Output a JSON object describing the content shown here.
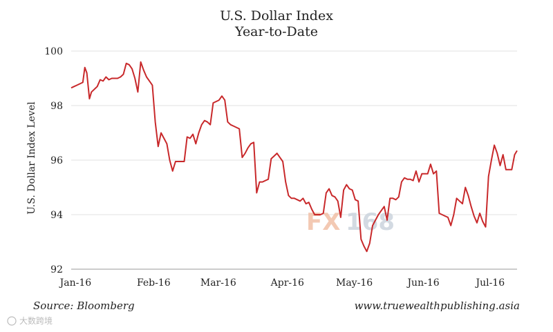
{
  "chart_data": {
    "type": "line",
    "title": "U.S. Dollar Index",
    "subtitle": "Year-to-Date",
    "xlabel": "",
    "ylabel": "U.S. Dollar Index Level",
    "ylim": [
      92,
      100
    ],
    "xlim": [
      0,
      200
    ],
    "yticks": [
      92,
      94,
      96,
      98,
      100
    ],
    "grid": true,
    "series_color": "#c8282a",
    "x_tick_labels": [
      {
        "label": "Jan-16",
        "x": 2
      },
      {
        "label": "Feb-16",
        "x": 37
      },
      {
        "label": "Mar-16",
        "x": 66
      },
      {
        "label": "Apr-16",
        "x": 97
      },
      {
        "label": "May-16",
        "x": 127
      },
      {
        "label": "Jun-16",
        "x": 158
      },
      {
        "label": "Jul-16",
        "x": 188
      }
    ],
    "series": [
      {
        "name": "U.S. Dollar Index",
        "points": [
          [
            0,
            98.65
          ],
          [
            1.3,
            98.7
          ],
          [
            2.6,
            98.75
          ],
          [
            3.9,
            98.8
          ],
          [
            5.2,
            98.85
          ],
          [
            6.1,
            99.4
          ],
          [
            7.0,
            99.2
          ],
          [
            8.2,
            98.25
          ],
          [
            9.1,
            98.5
          ],
          [
            10.4,
            98.6
          ],
          [
            11.7,
            98.7
          ],
          [
            13.0,
            98.95
          ],
          [
            14.3,
            98.9
          ],
          [
            15.6,
            99.05
          ],
          [
            16.9,
            98.95
          ],
          [
            18.2,
            99.0
          ],
          [
            19.5,
            99.0
          ],
          [
            20.8,
            99.0
          ],
          [
            22.1,
            99.05
          ],
          [
            23.4,
            99.15
          ],
          [
            24.7,
            99.55
          ],
          [
            26.0,
            99.5
          ],
          [
            27.3,
            99.35
          ],
          [
            28.6,
            99.0
          ],
          [
            29.9,
            98.5
          ],
          [
            31.2,
            99.6
          ],
          [
            32.5,
            99.3
          ],
          [
            33.8,
            99.05
          ],
          [
            35.1,
            98.9
          ],
          [
            36.4,
            98.75
          ],
          [
            37.7,
            97.4
          ],
          [
            39.0,
            96.5
          ],
          [
            40.3,
            97.0
          ],
          [
            41.6,
            96.8
          ],
          [
            42.9,
            96.6
          ],
          [
            44.2,
            96.0
          ],
          [
            45.5,
            95.6
          ],
          [
            46.8,
            95.95
          ],
          [
            48.1,
            95.95
          ],
          [
            49.4,
            95.95
          ],
          [
            50.7,
            95.95
          ],
          [
            52.0,
            96.85
          ],
          [
            53.3,
            96.8
          ],
          [
            54.6,
            96.95
          ],
          [
            55.9,
            96.6
          ],
          [
            57.2,
            97.0
          ],
          [
            58.5,
            97.3
          ],
          [
            59.8,
            97.45
          ],
          [
            61.1,
            97.4
          ],
          [
            62.4,
            97.3
          ],
          [
            63.7,
            98.1
          ],
          [
            65.0,
            98.15
          ],
          [
            66.3,
            98.2
          ],
          [
            67.6,
            98.35
          ],
          [
            68.9,
            98.2
          ],
          [
            70.2,
            97.4
          ],
          [
            71.5,
            97.3
          ],
          [
            72.8,
            97.25
          ],
          [
            74.1,
            97.2
          ],
          [
            75.4,
            97.15
          ],
          [
            76.7,
            96.1
          ],
          [
            78.0,
            96.25
          ],
          [
            79.3,
            96.45
          ],
          [
            80.6,
            96.6
          ],
          [
            81.9,
            96.65
          ],
          [
            83.2,
            94.8
          ],
          [
            84.5,
            95.2
          ],
          [
            85.8,
            95.2
          ],
          [
            87.1,
            95.25
          ],
          [
            88.4,
            95.3
          ],
          [
            89.7,
            96.05
          ],
          [
            91.0,
            96.15
          ],
          [
            92.3,
            96.25
          ],
          [
            93.6,
            96.1
          ],
          [
            94.9,
            95.95
          ],
          [
            96.2,
            95.2
          ],
          [
            97.5,
            94.7
          ],
          [
            98.8,
            94.6
          ],
          [
            100.1,
            94.6
          ],
          [
            101.4,
            94.55
          ],
          [
            102.7,
            94.5
          ],
          [
            104.0,
            94.6
          ],
          [
            105.3,
            94.4
          ],
          [
            106.6,
            94.45
          ],
          [
            107.9,
            94.2
          ],
          [
            109.2,
            94.0
          ],
          [
            110.5,
            94.0
          ],
          [
            111.8,
            94.0
          ],
          [
            113.1,
            94.05
          ],
          [
            114.4,
            94.8
          ],
          [
            115.7,
            94.95
          ],
          [
            117.0,
            94.7
          ],
          [
            118.3,
            94.65
          ],
          [
            119.6,
            94.5
          ],
          [
            120.9,
            93.9
          ],
          [
            122.2,
            94.9
          ],
          [
            123.5,
            95.1
          ],
          [
            124.8,
            94.95
          ],
          [
            126.1,
            94.9
          ],
          [
            127.4,
            94.55
          ],
          [
            128.7,
            94.5
          ],
          [
            130.0,
            93.1
          ],
          [
            131.3,
            92.85
          ],
          [
            132.6,
            92.65
          ],
          [
            133.9,
            92.95
          ],
          [
            135.2,
            93.6
          ],
          [
            136.5,
            93.8
          ],
          [
            137.8,
            94.0
          ],
          [
            139.1,
            94.15
          ],
          [
            140.4,
            94.3
          ],
          [
            141.7,
            93.8
          ],
          [
            143.0,
            94.6
          ],
          [
            144.3,
            94.6
          ],
          [
            145.6,
            94.55
          ],
          [
            146.9,
            94.65
          ],
          [
            148.2,
            95.2
          ],
          [
            149.5,
            95.35
          ],
          [
            150.8,
            95.3
          ],
          [
            152.1,
            95.3
          ],
          [
            153.4,
            95.25
          ],
          [
            154.7,
            95.6
          ],
          [
            156.0,
            95.2
          ],
          [
            157.3,
            95.5
          ],
          [
            158.6,
            95.5
          ],
          [
            159.9,
            95.5
          ],
          [
            161.2,
            95.85
          ],
          [
            162.5,
            95.5
          ],
          [
            163.8,
            95.6
          ],
          [
            165.1,
            94.05
          ],
          [
            166.4,
            94.0
          ],
          [
            167.7,
            93.95
          ],
          [
            169.0,
            93.9
          ],
          [
            170.3,
            93.6
          ],
          [
            171.6,
            94.0
          ],
          [
            172.9,
            94.6
          ],
          [
            174.2,
            94.5
          ],
          [
            175.5,
            94.4
          ],
          [
            176.8,
            95.0
          ],
          [
            178.1,
            94.7
          ],
          [
            179.4,
            94.3
          ],
          [
            180.7,
            93.95
          ],
          [
            182.0,
            93.7
          ],
          [
            183.3,
            94.05
          ],
          [
            184.6,
            93.75
          ],
          [
            185.9,
            93.55
          ],
          [
            187.2,
            95.4
          ],
          [
            188.5,
            96.0
          ],
          [
            189.8,
            96.55
          ],
          [
            191.1,
            96.25
          ],
          [
            192.4,
            95.8
          ],
          [
            193.7,
            96.2
          ],
          [
            195.0,
            95.65
          ],
          [
            196.3,
            95.65
          ],
          [
            197.6,
            95.65
          ],
          [
            198.9,
            96.2
          ],
          [
            200,
            96.35
          ]
        ]
      }
    ]
  },
  "footer": {
    "source": "Source: Bloomberg",
    "website": "www.truewealthpublishing.asia"
  },
  "watermark": {
    "fx": "FX",
    "num": "168",
    "bottom": "大数跨境"
  }
}
